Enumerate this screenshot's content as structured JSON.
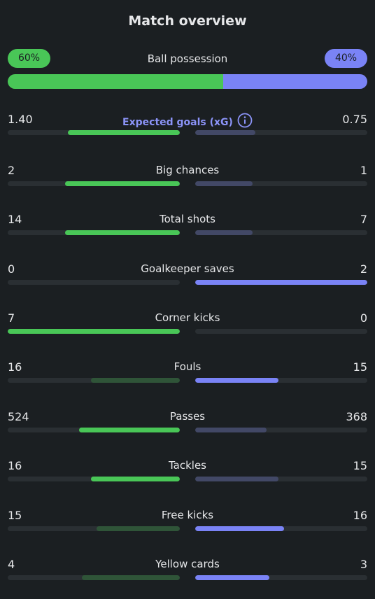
{
  "title": "Match overview",
  "possession": {
    "label": "Ball possession",
    "home_label": "60%",
    "away_label": "40%",
    "home_fraction": 0.6,
    "away_fraction": 0.4,
    "home_color": "#49c657",
    "away_color": "#7a83f6"
  },
  "stats": [
    {
      "name": "xg",
      "label": "Expected goals (xG)",
      "home": "1.40",
      "away": "0.75",
      "home_fill": 0.65,
      "away_fill": 0.35,
      "winner": "home",
      "has_info_icon": true
    },
    {
      "name": "big-chances",
      "label": "Big chances",
      "home": "2",
      "away": "1",
      "home_fill": 0.667,
      "away_fill": 0.333,
      "winner": "home"
    },
    {
      "name": "total-shots",
      "label": "Total shots",
      "home": "14",
      "away": "7",
      "home_fill": 0.667,
      "away_fill": 0.333,
      "winner": "home"
    },
    {
      "name": "goalkeeper-saves",
      "label": "Goalkeeper saves",
      "home": "0",
      "away": "2",
      "home_fill": 0,
      "away_fill": 1,
      "winner": "away"
    },
    {
      "name": "corner-kicks",
      "label": "Corner kicks",
      "home": "7",
      "away": "0",
      "home_fill": 1,
      "away_fill": 0,
      "winner": "home"
    },
    {
      "name": "fouls",
      "label": "Fouls",
      "home": "16",
      "away": "15",
      "home_fill": 0.516,
      "away_fill": 0.484,
      "winner": "away"
    },
    {
      "name": "passes",
      "label": "Passes",
      "home": "524",
      "away": "368",
      "home_fill": 0.587,
      "away_fill": 0.413,
      "winner": "home"
    },
    {
      "name": "tackles",
      "label": "Tackles",
      "home": "16",
      "away": "15",
      "home_fill": 0.516,
      "away_fill": 0.484,
      "winner": "home"
    },
    {
      "name": "free-kicks",
      "label": "Free kicks",
      "home": "15",
      "away": "16",
      "home_fill": 0.484,
      "away_fill": 0.516,
      "winner": "away"
    },
    {
      "name": "yellow-cards",
      "label": "Yellow cards",
      "home": "4",
      "away": "3",
      "home_fill": 0.571,
      "away_fill": 0.429,
      "winner": "away"
    }
  ],
  "colors": {
    "home_win": "#49c657",
    "home_lose": "#2f5438",
    "away_win": "#7a83f6",
    "away_lose": "#424866",
    "track": "#2a2f33",
    "background": "#1b1f22",
    "xg_label": "#8b93f7"
  }
}
